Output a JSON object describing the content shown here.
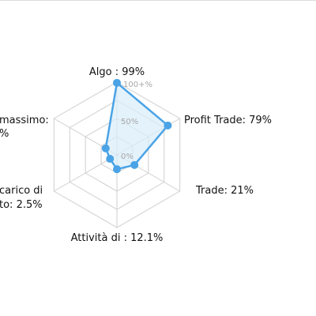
{
  "chart_data": {
    "type": "radar",
    "axes": [
      {
        "label": "Algo : 99%",
        "value": 99
      },
      {
        "label": "Profit Trade: 79%",
        "value": 79
      },
      {
        "label": "Trade: 21%",
        "value": 21
      },
      {
        "label": "Attività di : 12.1%",
        "value": 12.1
      },
      {
        "label_lines": [
          "carico di",
          "to: 2.5%"
        ],
        "value": 2.5
      },
      {
        "label_lines": [
          "massimo:",
          "%"
        ],
        "value": 10
      }
    ],
    "ticks": [
      "0%",
      "50%",
      "100+%"
    ],
    "range": [
      0,
      100
    ],
    "grid": true,
    "colors": {
      "series": "#4aa3e6",
      "fill": "#d8ecf9",
      "grid": "#cfcfcf",
      "tick": "#a6a6a6"
    }
  }
}
